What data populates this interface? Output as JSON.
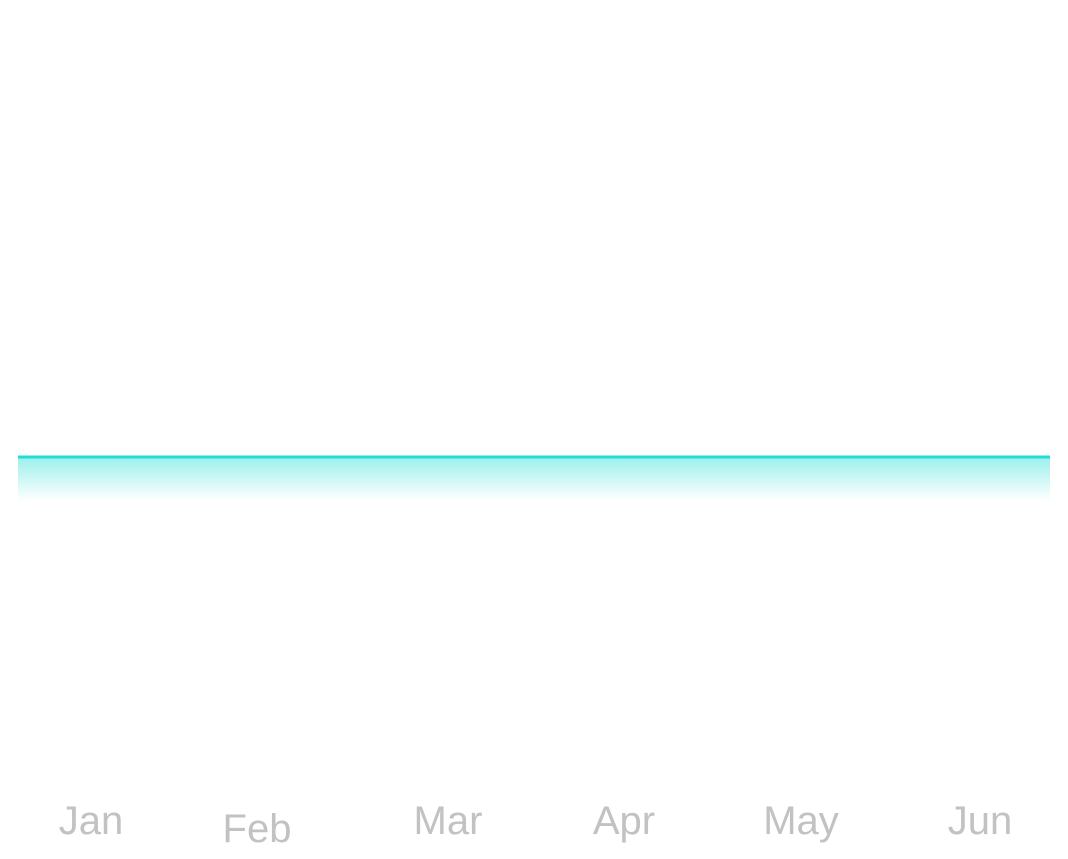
{
  "chart_data": {
    "type": "area",
    "categories": [
      "Jan",
      "Feb",
      "Mar",
      "Apr",
      "May",
      "Jun"
    ],
    "series": [
      {
        "values": [
          0,
          0,
          0,
          0,
          0,
          0
        ]
      }
    ],
    "title": "",
    "xlabel": "",
    "ylabel": "",
    "grid": false,
    "legend": "none",
    "colors": {
      "line": "#22ddd6",
      "fill": "#22ddd6",
      "tick_label": "#c2c2c2",
      "background": "#ffffff"
    }
  }
}
